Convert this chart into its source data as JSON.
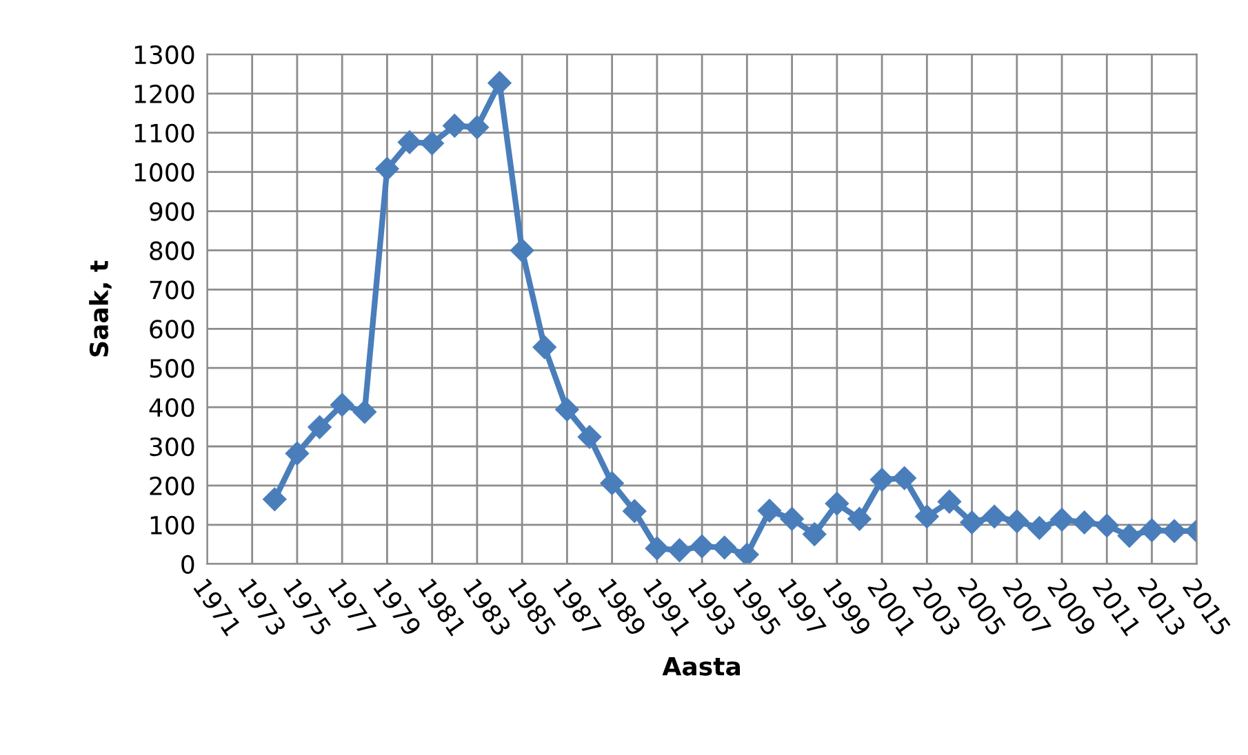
{
  "chart_data": {
    "type": "line",
    "xlabel": "Aasta",
    "ylabel": "Saak, t",
    "categories": [
      "1971",
      null,
      "1973",
      null,
      "1975",
      null,
      "1977",
      null,
      "1979",
      null,
      "1981",
      null,
      "1983",
      null,
      "1985",
      null,
      "1987",
      null,
      "1989",
      null,
      "1991",
      null,
      "1993",
      null,
      "1995",
      null,
      "1997",
      null,
      "1999",
      null,
      "2001",
      null,
      "2003",
      null,
      "2005",
      null,
      "2007",
      null,
      "2009",
      null,
      "2011",
      null,
      "2013",
      null,
      "2015"
    ],
    "series": [
      {
        "color": "#4a7ebb",
        "values": [
          null,
          null,
          null,
          165,
          282,
          349,
          406,
          388,
          1008,
          1076,
          1073,
          1118,
          1114,
          1227,
          800,
          553,
          394,
          324,
          206,
          135,
          40,
          35,
          45,
          42,
          24,
          136,
          115,
          76,
          154,
          115,
          215,
          219,
          121,
          159,
          106,
          121,
          109,
          92,
          113,
          106,
          98,
          72,
          86,
          84,
          84
        ]
      }
    ],
    "ylim": [
      0,
      1300
    ],
    "yticks": [
      0,
      100,
      200,
      300,
      400,
      500,
      600,
      700,
      800,
      900,
      1000,
      1100,
      1200,
      1300
    ],
    "grid": true,
    "legend": false,
    "marker": "diamond",
    "line_style": "solid"
  }
}
